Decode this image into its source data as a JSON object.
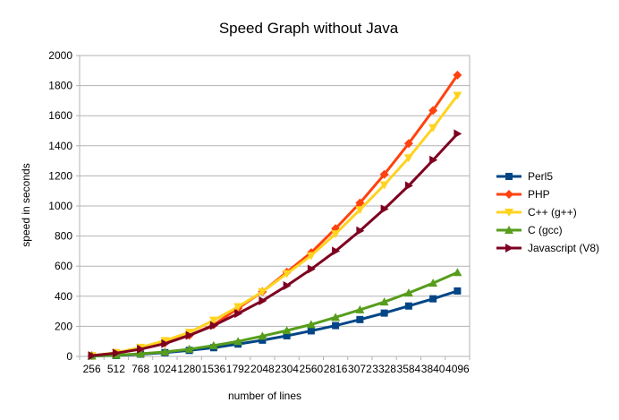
{
  "chart_data": {
    "type": "line",
    "title": "Speed Graph without Java",
    "xlabel": "number of lines",
    "ylabel": "speed in seconds",
    "ylim": [
      0,
      2000
    ],
    "ytick_step": 200,
    "grid": true,
    "legend_position": "right",
    "categories": [
      "256",
      "512",
      "768",
      "1024",
      "1280",
      "1536",
      "1792",
      "2048",
      "2304",
      "2560",
      "2816",
      "3072",
      "3328",
      "3584",
      "3840",
      "4096"
    ],
    "series": [
      {
        "name": "Perl5",
        "color": "#004586",
        "marker": "square",
        "values": [
          3,
          6,
          15,
          25,
          40,
          58,
          82,
          108,
          137,
          170,
          205,
          245,
          288,
          335,
          383,
          435
        ]
      },
      {
        "name": "PHP",
        "color": "#ff420e",
        "marker": "diamond",
        "values": [
          5,
          22,
          50,
          90,
          140,
          210,
          320,
          430,
          560,
          690,
          850,
          1020,
          1210,
          1415,
          1635,
          1870
        ]
      },
      {
        "name": "C++ (g++)",
        "color": "#ffd320",
        "marker": "triangle-down",
        "values": [
          5,
          25,
          60,
          105,
          160,
          240,
          330,
          430,
          550,
          670,
          815,
          975,
          1140,
          1320,
          1520,
          1735
        ]
      },
      {
        "name": "C (gcc)",
        "color": "#579d1c",
        "marker": "triangle-up",
        "values": [
          3,
          8,
          18,
          30,
          48,
          72,
          100,
          135,
          172,
          212,
          260,
          310,
          362,
          422,
          487,
          558
        ]
      },
      {
        "name": "Javascript (V8)",
        "color": "#7e0021",
        "marker": "triangle-right",
        "values": [
          5,
          22,
          48,
          85,
          140,
          205,
          285,
          370,
          470,
          580,
          700,
          835,
          980,
          1135,
          1305,
          1480
        ]
      }
    ]
  }
}
